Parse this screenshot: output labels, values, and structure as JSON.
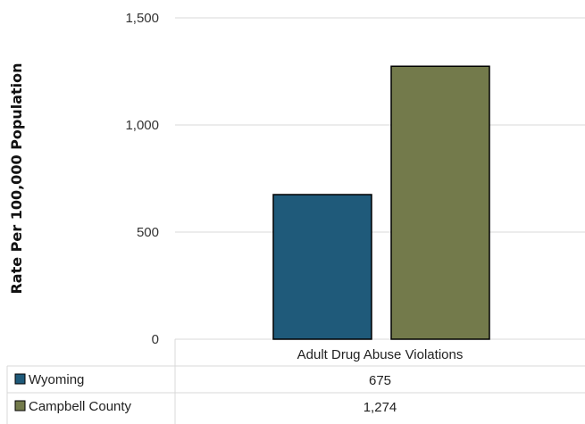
{
  "chart_data": {
    "type": "bar",
    "ylabel": "Rate Per 100,000 Population",
    "ylim": [
      0,
      1500
    ],
    "yticks": [
      0,
      500,
      1000,
      1500
    ],
    "ytick_labels": [
      "0",
      "500",
      "1,000",
      "1,500"
    ],
    "categories": [
      "Adult Drug Abuse Violations"
    ],
    "series": [
      {
        "name": "Wyoming",
        "values": [
          675
        ],
        "color": "#1f5a7a",
        "value_labels": [
          "675"
        ]
      },
      {
        "name": "Campbell County",
        "values": [
          1274
        ],
        "color": "#737a4b",
        "value_labels": [
          "1,274"
        ]
      }
    ],
    "grid": true,
    "legend": "data-table-below"
  }
}
